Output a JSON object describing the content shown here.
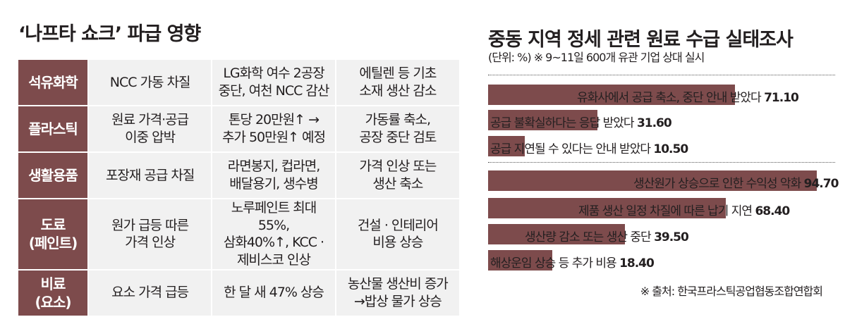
{
  "left_title": "‘나프타 쇼크’ 파급 영향",
  "rows": [
    {
      "category": "석유화학",
      "c1": "NCC 가동 차질",
      "c2": "LG화학 여수 2공장\n중단, 여천 NCC 감산",
      "c3": "에틸렌 등 기초\n소재 생산 감소"
    },
    {
      "category": "플라스틱",
      "c1": "원료 가격·공급\n이중 압박",
      "c2": "톤당 20만원↑ →\n추가 50만원↑ 예정",
      "c3": "가동률 축소,\n공장  중단 검토"
    },
    {
      "category": "생활용품",
      "c1": "포장재 공급 차질",
      "c2": "라면봉지, 컵라면,\n배달용기, 생수병",
      "c3": "가격 인상 또는\n생산 축소"
    },
    {
      "category": "도료\n(페인트)",
      "c1": "원가 급등 따른\n가격 인상",
      "c2": "노루페인트 최대 55%,\n삼화40%↑, KCC ·\n제비스코 인상",
      "c3": "건설 · 인테리어\n비용 상승"
    },
    {
      "category": "비료\n(요소)",
      "c1": "요소 가격 급등",
      "c2": "한 달 새 47% 상승",
      "c3": "농산물 생산비 증가\n→밥상 물가 상승"
    }
  ],
  "chart_data": {
    "type": "bar",
    "orientation": "horizontal",
    "title": "중동 지역 정세 관련 원료 수급 실태조사",
    "subtitle": "(단위: %) ※ 9~11일 600개 유관 기업 상대 실시",
    "xlim": [
      0,
      100
    ],
    "groups": [
      {
        "categories": [
          "유화사에서 공급 축소, 중단 안내 받았다",
          "공급 불확실하다는 응답 받았다",
          "공급 지연될 수 있다는 안내 받았다"
        ],
        "values": [
          71.1,
          31.6,
          10.5
        ]
      },
      {
        "categories": [
          "생산원가 상승으로 인한 수익성 악화",
          "제품 생산 일정 차질에 따른 납기 지연",
          "생산량 감소 또는 생산 중단",
          "해상운임 상승 등 추가 비용"
        ],
        "values": [
          94.7,
          68.4,
          39.5,
          18.4
        ]
      }
    ],
    "value_labels": [
      [
        "71.10",
        "31.60",
        "10.50"
      ],
      [
        "94.70",
        "68.40",
        "39.50",
        "18.40"
      ]
    ],
    "bar_color": "#7d4b4c",
    "source": "※ 출처: 한국프라스틱공업협동조합연합회"
  }
}
